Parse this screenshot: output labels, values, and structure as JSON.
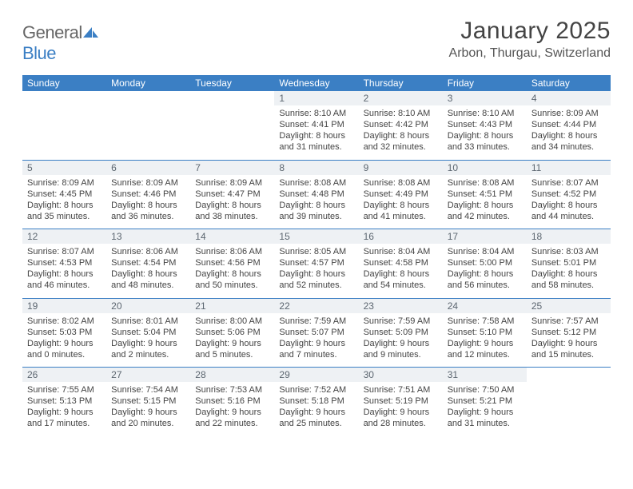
{
  "brand": {
    "general": "General",
    "blue": "Blue"
  },
  "title": "January 2025",
  "location": "Arbon, Thurgau, Switzerland",
  "colors": {
    "accent": "#3b7fc4",
    "daynum_bg": "#eef1f4",
    "text": "#444444",
    "header_text": "#ffffff"
  },
  "weekday_headers": [
    "Sunday",
    "Monday",
    "Tuesday",
    "Wednesday",
    "Thursday",
    "Friday",
    "Saturday"
  ],
  "weeks": [
    [
      {
        "empty": true
      },
      {
        "empty": true
      },
      {
        "empty": true
      },
      {
        "day": "1",
        "sunrise": "8:10 AM",
        "sunset": "4:41 PM",
        "daylight_h": 8,
        "daylight_m": 31
      },
      {
        "day": "2",
        "sunrise": "8:10 AM",
        "sunset": "4:42 PM",
        "daylight_h": 8,
        "daylight_m": 32
      },
      {
        "day": "3",
        "sunrise": "8:10 AM",
        "sunset": "4:43 PM",
        "daylight_h": 8,
        "daylight_m": 33
      },
      {
        "day": "4",
        "sunrise": "8:09 AM",
        "sunset": "4:44 PM",
        "daylight_h": 8,
        "daylight_m": 34
      }
    ],
    [
      {
        "day": "5",
        "sunrise": "8:09 AM",
        "sunset": "4:45 PM",
        "daylight_h": 8,
        "daylight_m": 35
      },
      {
        "day": "6",
        "sunrise": "8:09 AM",
        "sunset": "4:46 PM",
        "daylight_h": 8,
        "daylight_m": 36
      },
      {
        "day": "7",
        "sunrise": "8:09 AM",
        "sunset": "4:47 PM",
        "daylight_h": 8,
        "daylight_m": 38
      },
      {
        "day": "8",
        "sunrise": "8:08 AM",
        "sunset": "4:48 PM",
        "daylight_h": 8,
        "daylight_m": 39
      },
      {
        "day": "9",
        "sunrise": "8:08 AM",
        "sunset": "4:49 PM",
        "daylight_h": 8,
        "daylight_m": 41
      },
      {
        "day": "10",
        "sunrise": "8:08 AM",
        "sunset": "4:51 PM",
        "daylight_h": 8,
        "daylight_m": 42
      },
      {
        "day": "11",
        "sunrise": "8:07 AM",
        "sunset": "4:52 PM",
        "daylight_h": 8,
        "daylight_m": 44
      }
    ],
    [
      {
        "day": "12",
        "sunrise": "8:07 AM",
        "sunset": "4:53 PM",
        "daylight_h": 8,
        "daylight_m": 46
      },
      {
        "day": "13",
        "sunrise": "8:06 AM",
        "sunset": "4:54 PM",
        "daylight_h": 8,
        "daylight_m": 48
      },
      {
        "day": "14",
        "sunrise": "8:06 AM",
        "sunset": "4:56 PM",
        "daylight_h": 8,
        "daylight_m": 50
      },
      {
        "day": "15",
        "sunrise": "8:05 AM",
        "sunset": "4:57 PM",
        "daylight_h": 8,
        "daylight_m": 52
      },
      {
        "day": "16",
        "sunrise": "8:04 AM",
        "sunset": "4:58 PM",
        "daylight_h": 8,
        "daylight_m": 54
      },
      {
        "day": "17",
        "sunrise": "8:04 AM",
        "sunset": "5:00 PM",
        "daylight_h": 8,
        "daylight_m": 56
      },
      {
        "day": "18",
        "sunrise": "8:03 AM",
        "sunset": "5:01 PM",
        "daylight_h": 8,
        "daylight_m": 58
      }
    ],
    [
      {
        "day": "19",
        "sunrise": "8:02 AM",
        "sunset": "5:03 PM",
        "daylight_h": 9,
        "daylight_m": 0
      },
      {
        "day": "20",
        "sunrise": "8:01 AM",
        "sunset": "5:04 PM",
        "daylight_h": 9,
        "daylight_m": 2
      },
      {
        "day": "21",
        "sunrise": "8:00 AM",
        "sunset": "5:06 PM",
        "daylight_h": 9,
        "daylight_m": 5
      },
      {
        "day": "22",
        "sunrise": "7:59 AM",
        "sunset": "5:07 PM",
        "daylight_h": 9,
        "daylight_m": 7
      },
      {
        "day": "23",
        "sunrise": "7:59 AM",
        "sunset": "5:09 PM",
        "daylight_h": 9,
        "daylight_m": 9
      },
      {
        "day": "24",
        "sunrise": "7:58 AM",
        "sunset": "5:10 PM",
        "daylight_h": 9,
        "daylight_m": 12
      },
      {
        "day": "25",
        "sunrise": "7:57 AM",
        "sunset": "5:12 PM",
        "daylight_h": 9,
        "daylight_m": 15
      }
    ],
    [
      {
        "day": "26",
        "sunrise": "7:55 AM",
        "sunset": "5:13 PM",
        "daylight_h": 9,
        "daylight_m": 17
      },
      {
        "day": "27",
        "sunrise": "7:54 AM",
        "sunset": "5:15 PM",
        "daylight_h": 9,
        "daylight_m": 20
      },
      {
        "day": "28",
        "sunrise": "7:53 AM",
        "sunset": "5:16 PM",
        "daylight_h": 9,
        "daylight_m": 22
      },
      {
        "day": "29",
        "sunrise": "7:52 AM",
        "sunset": "5:18 PM",
        "daylight_h": 9,
        "daylight_m": 25
      },
      {
        "day": "30",
        "sunrise": "7:51 AM",
        "sunset": "5:19 PM",
        "daylight_h": 9,
        "daylight_m": 28
      },
      {
        "day": "31",
        "sunrise": "7:50 AM",
        "sunset": "5:21 PM",
        "daylight_h": 9,
        "daylight_m": 31
      },
      {
        "empty": true
      }
    ]
  ]
}
